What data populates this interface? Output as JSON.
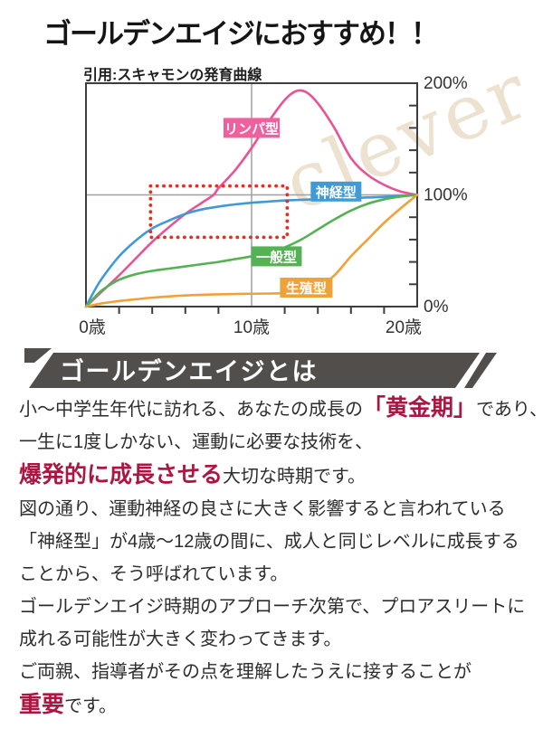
{
  "title": "ゴールデンエイジにおすすめ！！",
  "chart_data": {
    "type": "line",
    "caption": "引用:スキャモンの発育曲線",
    "watermark": "clever",
    "watermark_color": "#ece2cf",
    "xlim": [
      0,
      20
    ],
    "ylim": [
      0,
      200
    ],
    "x_axis_labels": [
      {
        "label": "0歳",
        "age": 0,
        "dx": 7
      },
      {
        "label": "10歳",
        "age": 10,
        "dx": 0
      },
      {
        "label": "20歳",
        "age": 20,
        "dx": -15
      }
    ],
    "y_axis_labels": [
      {
        "label": "200%",
        "pct": 200
      },
      {
        "label": "100%",
        "pct": 100
      },
      {
        "label": "0%",
        "pct": 0
      }
    ],
    "x_minor_ticks": [
      2,
      4,
      6,
      8,
      12,
      14,
      16,
      18
    ],
    "y_minor_ticks": [
      20,
      40,
      60,
      80,
      120,
      140,
      160,
      180
    ],
    "gridlines": {
      "x": [
        10
      ],
      "y": [
        100
      ]
    },
    "grid_color": "#a0a0a0",
    "frame_color": "#3d3d3d",
    "axis_text_color": "#333333",
    "series": [
      {
        "name": "リンパ型",
        "color": "#e95392",
        "label_bg": "#f0609f",
        "label_anchor": {
          "age": 10.0,
          "pct": 160
        },
        "label_w": 62,
        "label_h": 22,
        "points": [
          [
            0,
            0
          ],
          [
            1,
            14
          ],
          [
            2,
            28
          ],
          [
            3,
            43
          ],
          [
            4,
            58
          ],
          [
            5,
            71
          ],
          [
            6,
            83
          ],
          [
            7,
            93
          ],
          [
            7.7,
            100
          ],
          [
            8,
            106
          ],
          [
            9,
            122
          ],
          [
            10,
            142
          ],
          [
            11,
            165
          ],
          [
            12,
            185
          ],
          [
            12.7,
            193
          ],
          [
            13.3,
            192
          ],
          [
            14,
            182
          ],
          [
            15,
            160
          ],
          [
            16,
            133
          ],
          [
            17,
            118
          ],
          [
            18,
            109
          ],
          [
            19,
            103
          ],
          [
            20,
            100
          ]
        ]
      },
      {
        "name": "神経型",
        "color": "#3f9ad6",
        "label_bg": "#3f9ad6",
        "label_anchor": {
          "age": 15.1,
          "pct": 103
        },
        "label_w": 56,
        "label_h": 22,
        "points": [
          [
            0,
            0
          ],
          [
            0.5,
            14
          ],
          [
            1,
            26
          ],
          [
            2,
            45
          ],
          [
            3,
            59
          ],
          [
            4,
            70
          ],
          [
            5,
            77
          ],
          [
            6,
            83
          ],
          [
            7,
            87
          ],
          [
            8,
            89.5
          ],
          [
            9,
            91.5
          ],
          [
            10,
            93
          ],
          [
            11,
            94
          ],
          [
            12,
            95
          ],
          [
            13,
            95.6
          ],
          [
            14,
            96.2
          ],
          [
            15,
            96.7
          ],
          [
            16,
            97.2
          ],
          [
            17,
            97.7
          ],
          [
            18,
            98.2
          ],
          [
            19,
            99
          ],
          [
            20,
            100
          ]
        ]
      },
      {
        "name": "一般型",
        "color": "#54b254",
        "label_bg": "#54b254",
        "label_anchor": {
          "age": 11.5,
          "pct": 45
        },
        "label_w": 56,
        "label_h": 22,
        "points": [
          [
            0,
            0
          ],
          [
            0.5,
            8
          ],
          [
            1,
            15
          ],
          [
            2,
            24
          ],
          [
            3,
            29
          ],
          [
            4,
            32
          ],
          [
            5,
            34
          ],
          [
            6,
            36
          ],
          [
            7,
            38
          ],
          [
            8,
            40
          ],
          [
            9,
            42.5
          ],
          [
            10,
            45
          ],
          [
            11,
            48
          ],
          [
            12,
            53
          ],
          [
            13,
            60
          ],
          [
            14,
            69
          ],
          [
            15,
            78
          ],
          [
            16,
            86
          ],
          [
            17,
            92
          ],
          [
            18,
            96
          ],
          [
            19,
            98.5
          ],
          [
            20,
            100
          ]
        ]
      },
      {
        "name": "生殖型",
        "color": "#f0a23a",
        "label_bg": "#f0a23a",
        "label_anchor": {
          "age": 13.3,
          "pct": 17
        },
        "label_w": 58,
        "label_h": 22,
        "points": [
          [
            0,
            0
          ],
          [
            1,
            3
          ],
          [
            2,
            5
          ],
          [
            3,
            6.5
          ],
          [
            4,
            8
          ],
          [
            6,
            10
          ],
          [
            8,
            11
          ],
          [
            10,
            11.5
          ],
          [
            12,
            12
          ],
          [
            13,
            13
          ],
          [
            14,
            17
          ],
          [
            15,
            28
          ],
          [
            16,
            45
          ],
          [
            17,
            60
          ],
          [
            18,
            75
          ],
          [
            19,
            88
          ],
          [
            20,
            100
          ]
        ]
      }
    ],
    "highlight_box": {
      "age_from": 3.9,
      "age_to": 12.15,
      "pct_from": 62,
      "pct_to": 108,
      "color": "#e0301f",
      "style": "dotted"
    }
  },
  "section_header": {
    "label": "ゴールデンエイジとは",
    "bg": "#514e4c",
    "text_color": "#ffffff"
  },
  "body": {
    "text_color": "#2d2d2d",
    "accent_color": "#ab1742",
    "lines": [
      {
        "segments": [
          {
            "text": "小～中学生年代に訪れる、あなたの成長の",
            "em": false
          },
          {
            "text": "「黄金期」",
            "em": true
          },
          {
            "text": "であり、",
            "em": false
          }
        ]
      },
      {
        "segments": [
          {
            "text": "一生に1度しかない、運動に必要な技術を、",
            "em": false
          }
        ]
      },
      {
        "segments": [
          {
            "text": "爆発的に成長させる",
            "em": true
          },
          {
            "text": "大切な時期です。",
            "em": false
          }
        ]
      },
      {
        "segments": [
          {
            "text": "図の通り、運動神経の良さに大きく影響すると言われている",
            "em": false
          }
        ]
      },
      {
        "segments": [
          {
            "text": "「神経型」が4歳～12歳の間に、成人と同じレベルに成長する",
            "em": false
          }
        ]
      },
      {
        "segments": [
          {
            "text": "ことから、そう呼ばれています。",
            "em": false
          }
        ]
      },
      {
        "segments": [
          {
            "text": "ゴールデンエイジ時期のアプローチ次第で、プロアスリートに",
            "em": false
          }
        ]
      },
      {
        "segments": [
          {
            "text": "成れる可能性が大きく変わってきます。",
            "em": false
          }
        ]
      },
      {
        "segments": [
          {
            "text": "ご両親、指導者がその点を理解したうえに接することが",
            "em": false
          }
        ]
      },
      {
        "segments": [
          {
            "text": "重要",
            "em": true
          },
          {
            "text": "です。",
            "em": false
          }
        ]
      }
    ]
  }
}
